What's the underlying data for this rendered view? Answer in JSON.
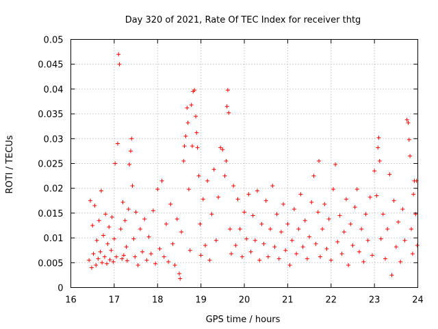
{
  "chart_data": {
    "type": "scatter",
    "title": "Day 320 of 2021, Rate Of TEC Index for receiver thtg",
    "xlabel": "GPS time / hours",
    "ylabel": "ROTI / TECUs",
    "xlim": [
      16,
      24
    ],
    "ylim": [
      0,
      0.05
    ],
    "xticks": [
      "16",
      "17",
      "18",
      "19",
      "20",
      "21",
      "22",
      "23",
      "24"
    ],
    "yticks": [
      "0",
      "0.005",
      "0.01",
      "0.015",
      "0.02",
      "0.025",
      "0.03",
      "0.035",
      "0.04",
      "0.045",
      "0.05"
    ],
    "grid": true,
    "marker": "+",
    "color": "#ff0000",
    "series": [
      {
        "name": "ROTI",
        "points": [
          [
            16.42,
            0.0055
          ],
          [
            16.45,
            0.0175
          ],
          [
            16.48,
            0.004
          ],
          [
            16.5,
            0.0125
          ],
          [
            16.52,
            0.0068
          ],
          [
            16.55,
            0.0165
          ],
          [
            16.58,
            0.0045
          ],
          [
            16.6,
            0.0095
          ],
          [
            16.63,
            0.0058
          ],
          [
            16.65,
            0.0135
          ],
          [
            16.68,
            0.0072
          ],
          [
            16.7,
            0.0195
          ],
          [
            16.72,
            0.005
          ],
          [
            16.75,
            0.0105
          ],
          [
            16.78,
            0.0062
          ],
          [
            16.8,
            0.0148
          ],
          [
            16.83,
            0.0048
          ],
          [
            16.85,
            0.0088
          ],
          [
            16.88,
            0.0122
          ],
          [
            16.9,
            0.0056
          ],
          [
            16.93,
            0.0075
          ],
          [
            16.95,
            0.0142
          ],
          [
            16.98,
            0.0052
          ],
          [
            17.0,
            0.0098
          ],
          [
            17.02,
            0.025
          ],
          [
            17.05,
            0.0062
          ],
          [
            17.08,
            0.029
          ],
          [
            17.1,
            0.047
          ],
          [
            17.12,
            0.045
          ],
          [
            17.15,
            0.0118
          ],
          [
            17.18,
            0.0058
          ],
          [
            17.2,
            0.0172
          ],
          [
            17.22,
            0.0065
          ],
          [
            17.25,
            0.0135
          ],
          [
            17.28,
            0.0082
          ],
          [
            17.3,
            0.0054
          ],
          [
            17.33,
            0.0158
          ],
          [
            17.35,
            0.0248
          ],
          [
            17.38,
            0.0275
          ],
          [
            17.4,
            0.03
          ],
          [
            17.42,
            0.0205
          ],
          [
            17.45,
            0.0098
          ],
          [
            17.48,
            0.0062
          ],
          [
            17.5,
            0.0152
          ],
          [
            17.55,
            0.0045
          ],
          [
            17.6,
            0.0118
          ],
          [
            17.65,
            0.0072
          ],
          [
            17.7,
            0.0138
          ],
          [
            17.75,
            0.0055
          ],
          [
            17.8,
            0.0102
          ],
          [
            17.85,
            0.0068
          ],
          [
            17.9,
            0.0155
          ],
          [
            17.95,
            0.0048
          ],
          [
            18.0,
            0.0198
          ],
          [
            18.05,
            0.0078
          ],
          [
            18.1,
            0.0215
          ],
          [
            18.15,
            0.0062
          ],
          [
            18.2,
            0.0128
          ],
          [
            18.25,
            0.0052
          ],
          [
            18.3,
            0.0168
          ],
          [
            18.35,
            0.0088
          ],
          [
            18.4,
            0.0045
          ],
          [
            18.45,
            0.0138
          ],
          [
            18.5,
            0.0028
          ],
          [
            18.52,
            0.0018
          ],
          [
            18.55,
            0.0112
          ],
          [
            18.6,
            0.0255
          ],
          [
            18.62,
            0.0285
          ],
          [
            18.65,
            0.0305
          ],
          [
            18.68,
            0.0362
          ],
          [
            18.7,
            0.0332
          ],
          [
            18.72,
            0.0198
          ],
          [
            18.75,
            0.0075
          ],
          [
            18.78,
            0.0368
          ],
          [
            18.8,
            0.0285
          ],
          [
            18.82,
            0.0395
          ],
          [
            18.85,
            0.0398
          ],
          [
            18.88,
            0.0345
          ],
          [
            18.9,
            0.0312
          ],
          [
            18.92,
            0.0282
          ],
          [
            18.95,
            0.0225
          ],
          [
            18.98,
            0.0128
          ],
          [
            19.0,
            0.0065
          ],
          [
            19.05,
            0.0178
          ],
          [
            19.1,
            0.0085
          ],
          [
            19.15,
            0.0215
          ],
          [
            19.2,
            0.0055
          ],
          [
            19.25,
            0.0148
          ],
          [
            19.3,
            0.0238
          ],
          [
            19.35,
            0.0095
          ],
          [
            19.4,
            0.0182
          ],
          [
            19.45,
            0.0282
          ],
          [
            19.5,
            0.0278
          ],
          [
            19.55,
            0.0225
          ],
          [
            19.58,
            0.0255
          ],
          [
            19.6,
            0.0365
          ],
          [
            19.62,
            0.0398
          ],
          [
            19.64,
            0.0352
          ],
          [
            19.67,
            0.0118
          ],
          [
            19.7,
            0.0068
          ],
          [
            19.75,
            0.0205
          ],
          [
            19.8,
            0.0085
          ],
          [
            19.85,
            0.0178
          ],
          [
            19.9,
            0.0118
          ],
          [
            19.95,
            0.0062
          ],
          [
            20.0,
            0.0152
          ],
          [
            20.05,
            0.0098
          ],
          [
            20.1,
            0.0188
          ],
          [
            20.15,
            0.0072
          ],
          [
            20.2,
            0.0145
          ],
          [
            20.25,
            0.0095
          ],
          [
            20.3,
            0.0195
          ],
          [
            20.35,
            0.0055
          ],
          [
            20.4,
            0.0128
          ],
          [
            20.45,
            0.0088
          ],
          [
            20.5,
            0.0175
          ],
          [
            20.55,
            0.0062
          ],
          [
            20.6,
            0.0118
          ],
          [
            20.65,
            0.0205
          ],
          [
            20.7,
            0.0082
          ],
          [
            20.75,
            0.0148
          ],
          [
            20.8,
            0.0058
          ],
          [
            20.85,
            0.0112
          ],
          [
            20.9,
            0.0168
          ],
          [
            20.95,
            0.0075
          ],
          [
            21.0,
            0.0128
          ],
          [
            21.05,
            0.0045
          ],
          [
            21.1,
            0.0095
          ],
          [
            21.15,
            0.0158
          ],
          [
            21.2,
            0.0068
          ],
          [
            21.25,
            0.0118
          ],
          [
            21.3,
            0.0188
          ],
          [
            21.35,
            0.0082
          ],
          [
            21.4,
            0.0135
          ],
          [
            21.45,
            0.0058
          ],
          [
            21.5,
            0.0102
          ],
          [
            21.55,
            0.0172
          ],
          [
            21.6,
            0.0225
          ],
          [
            21.65,
            0.0088
          ],
          [
            21.7,
            0.0152
          ],
          [
            21.72,
            0.0255
          ],
          [
            21.75,
            0.0062
          ],
          [
            21.8,
            0.0118
          ],
          [
            21.85,
            0.0168
          ],
          [
            21.9,
            0.0078
          ],
          [
            21.95,
            0.0138
          ],
          [
            22.0,
            0.0055
          ],
          [
            22.05,
            0.0198
          ],
          [
            22.1,
            0.0248
          ],
          [
            22.15,
            0.0092
          ],
          [
            22.2,
            0.0145
          ],
          [
            22.25,
            0.0068
          ],
          [
            22.3,
            0.0112
          ],
          [
            22.35,
            0.0178
          ],
          [
            22.4,
            0.0045
          ],
          [
            22.45,
            0.0128
          ],
          [
            22.5,
            0.0085
          ],
          [
            22.55,
            0.0162
          ],
          [
            22.6,
            0.0198
          ],
          [
            22.65,
            0.0072
          ],
          [
            22.7,
            0.0118
          ],
          [
            22.75,
            0.0052
          ],
          [
            22.8,
            0.0148
          ],
          [
            22.85,
            0.0095
          ],
          [
            22.9,
            0.0182
          ],
          [
            22.95,
            0.0065
          ],
          [
            23.0,
            0.0235
          ],
          [
            23.05,
            0.0185
          ],
          [
            23.08,
            0.0282
          ],
          [
            23.1,
            0.0302
          ],
          [
            23.12,
            0.0255
          ],
          [
            23.15,
            0.0098
          ],
          [
            23.2,
            0.0148
          ],
          [
            23.25,
            0.0058
          ],
          [
            23.3,
            0.0118
          ],
          [
            23.35,
            0.0228
          ],
          [
            23.4,
            0.0025
          ],
          [
            23.45,
            0.0175
          ],
          [
            23.5,
            0.0082
          ],
          [
            23.55,
            0.0132
          ],
          [
            23.6,
            0.0052
          ],
          [
            23.65,
            0.0158
          ],
          [
            23.7,
            0.0095
          ],
          [
            23.75,
            0.0338
          ],
          [
            23.78,
            0.0332
          ],
          [
            23.8,
            0.0298
          ],
          [
            23.82,
            0.0265
          ],
          [
            23.85,
            0.0118
          ],
          [
            23.88,
            0.0068
          ],
          [
            23.9,
            0.0188
          ],
          [
            23.92,
            0.0215
          ],
          [
            23.95,
            0.0148
          ],
          [
            23.97,
            0.0215
          ],
          [
            23.99,
            0.0085
          ]
        ]
      }
    ]
  }
}
